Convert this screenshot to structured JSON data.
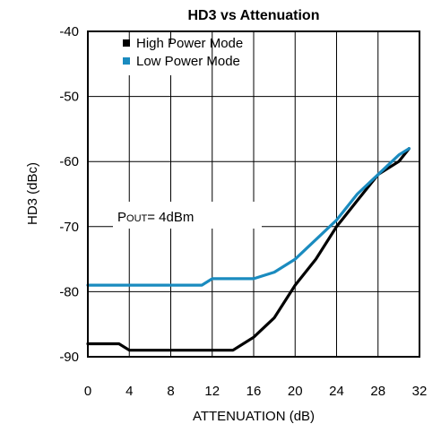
{
  "chart_data": {
    "type": "line",
    "title": "HD3 vs Attenuation",
    "xlabel": "ATTENUATION (dB)",
    "ylabel": "HD3 (dBc)",
    "xlim": [
      0,
      32
    ],
    "ylim": [
      -90,
      -40
    ],
    "xticks": [
      0,
      4,
      8,
      12,
      16,
      20,
      24,
      28,
      32
    ],
    "yticks": [
      -90,
      -80,
      -70,
      -60,
      -50,
      -40
    ],
    "xtick_labels": [
      "0",
      "4",
      "8",
      "12",
      "16",
      "20",
      "24",
      "28",
      "32"
    ],
    "ytick_labels": [
      "-90",
      "-80",
      "-70",
      "-60",
      "-50",
      "-40"
    ],
    "grid": true,
    "legend_position": "top-left",
    "annotation": {
      "main": "P",
      "sub": "OUT",
      "rest": "= 4dBm"
    },
    "series": [
      {
        "name": "High Power Mode",
        "color": "#000000",
        "x": [
          0,
          3,
          4,
          8,
          12,
          14,
          16,
          18,
          20,
          22,
          24,
          26,
          28,
          30,
          31
        ],
        "y": [
          -88,
          -88,
          -89,
          -89,
          -89,
          -89,
          -87,
          -84,
          -79,
          -75,
          -70,
          -66,
          -62,
          -60,
          -58
        ]
      },
      {
        "name": "Low Power Mode",
        "color": "#1a8bbf",
        "x": [
          0,
          4,
          8,
          11,
          12,
          16,
          18,
          20,
          22,
          24,
          26,
          28,
          30,
          31
        ],
        "y": [
          -79,
          -79,
          -79,
          -79,
          -78,
          -78,
          -77,
          -75,
          -72,
          -69,
          -65,
          -62,
          -59,
          -58
        ]
      }
    ]
  }
}
